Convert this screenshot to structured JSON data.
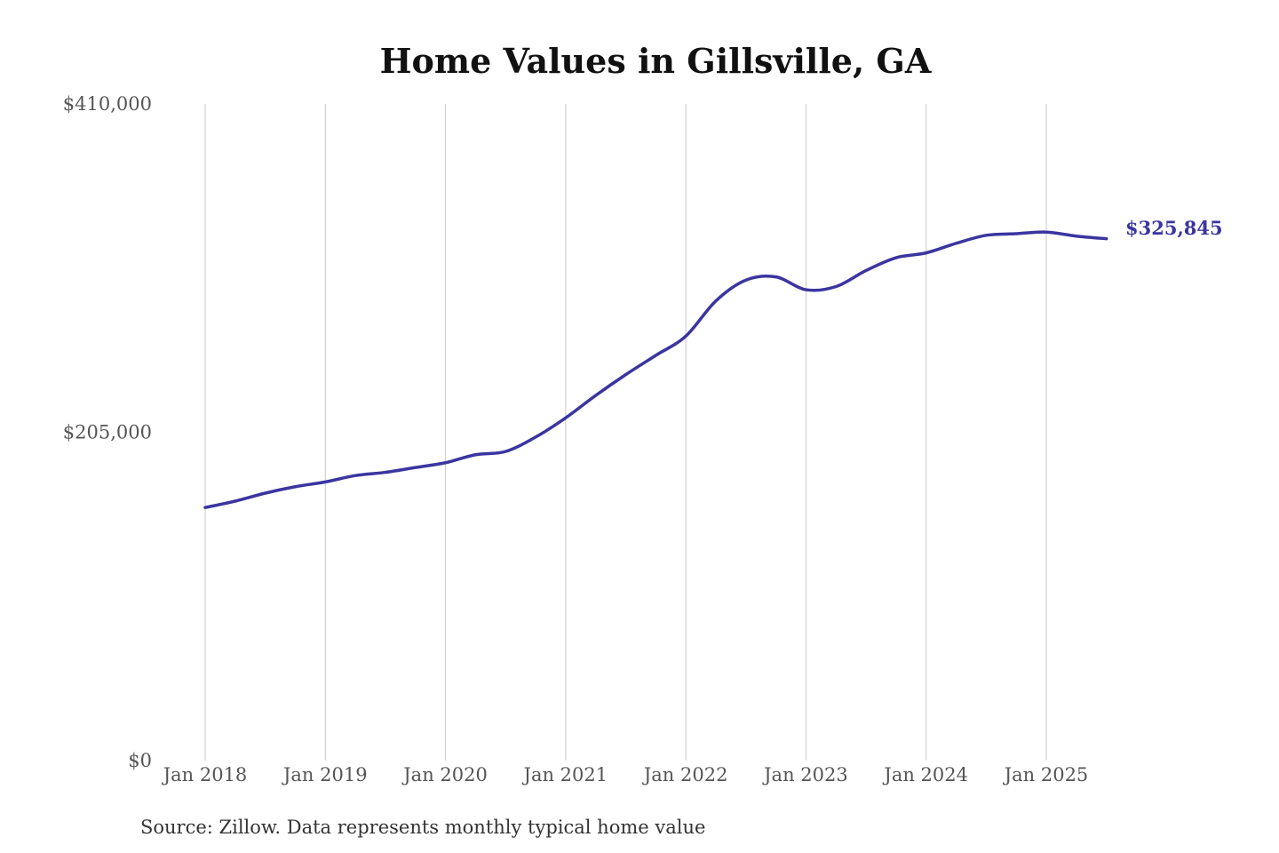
{
  "chart_data": {
    "type": "line",
    "title": "Home Values in Gillsville, GA",
    "xlabel": "",
    "ylabel": "",
    "ylim": [
      0,
      410000
    ],
    "y_ticks": [
      {
        "value": 0,
        "label": "$0"
      },
      {
        "value": 205000,
        "label": "$205,000"
      },
      {
        "value": 410000,
        "label": "$410,000"
      }
    ],
    "x_ticks": [
      {
        "value": 2018,
        "label": "Jan 2018"
      },
      {
        "value": 2019,
        "label": "Jan 2019"
      },
      {
        "value": 2020,
        "label": "Jan 2020"
      },
      {
        "value": 2021,
        "label": "Jan 2021"
      },
      {
        "value": 2022,
        "label": "Jan 2022"
      },
      {
        "value": 2023,
        "label": "Jan 2023"
      },
      {
        "value": 2024,
        "label": "Jan 2024"
      },
      {
        "value": 2025,
        "label": "Jan 2025"
      }
    ],
    "grid": "vertical",
    "series": [
      {
        "color": "#3a35a0",
        "points": [
          {
            "x": 2018.0,
            "y": 158000
          },
          {
            "x": 2018.25,
            "y": 162000
          },
          {
            "x": 2018.5,
            "y": 167000
          },
          {
            "x": 2018.75,
            "y": 171000
          },
          {
            "x": 2019.0,
            "y": 174000
          },
          {
            "x": 2019.25,
            "y": 178000
          },
          {
            "x": 2019.5,
            "y": 180000
          },
          {
            "x": 2019.75,
            "y": 183000
          },
          {
            "x": 2020.0,
            "y": 186000
          },
          {
            "x": 2020.25,
            "y": 191000
          },
          {
            "x": 2020.5,
            "y": 193000
          },
          {
            "x": 2020.75,
            "y": 202000
          },
          {
            "x": 2021.0,
            "y": 214000
          },
          {
            "x": 2021.25,
            "y": 228000
          },
          {
            "x": 2021.5,
            "y": 241000
          },
          {
            "x": 2021.75,
            "y": 253000
          },
          {
            "x": 2022.0,
            "y": 265000
          },
          {
            "x": 2022.25,
            "y": 287000
          },
          {
            "x": 2022.5,
            "y": 300000
          },
          {
            "x": 2022.75,
            "y": 302000
          },
          {
            "x": 2023.0,
            "y": 294000
          },
          {
            "x": 2023.25,
            "y": 296000
          },
          {
            "x": 2023.5,
            "y": 306000
          },
          {
            "x": 2023.75,
            "y": 314000
          },
          {
            "x": 2024.0,
            "y": 317000
          },
          {
            "x": 2024.25,
            "y": 323000
          },
          {
            "x": 2024.5,
            "y": 328000
          },
          {
            "x": 2024.75,
            "y": 329000
          },
          {
            "x": 2025.0,
            "y": 330000
          },
          {
            "x": 2025.25,
            "y": 327500
          },
          {
            "x": 2025.5,
            "y": 325845
          }
        ]
      }
    ],
    "end_label": "$325,845",
    "source": "Source: Zillow. Data represents monthly typical home value"
  }
}
